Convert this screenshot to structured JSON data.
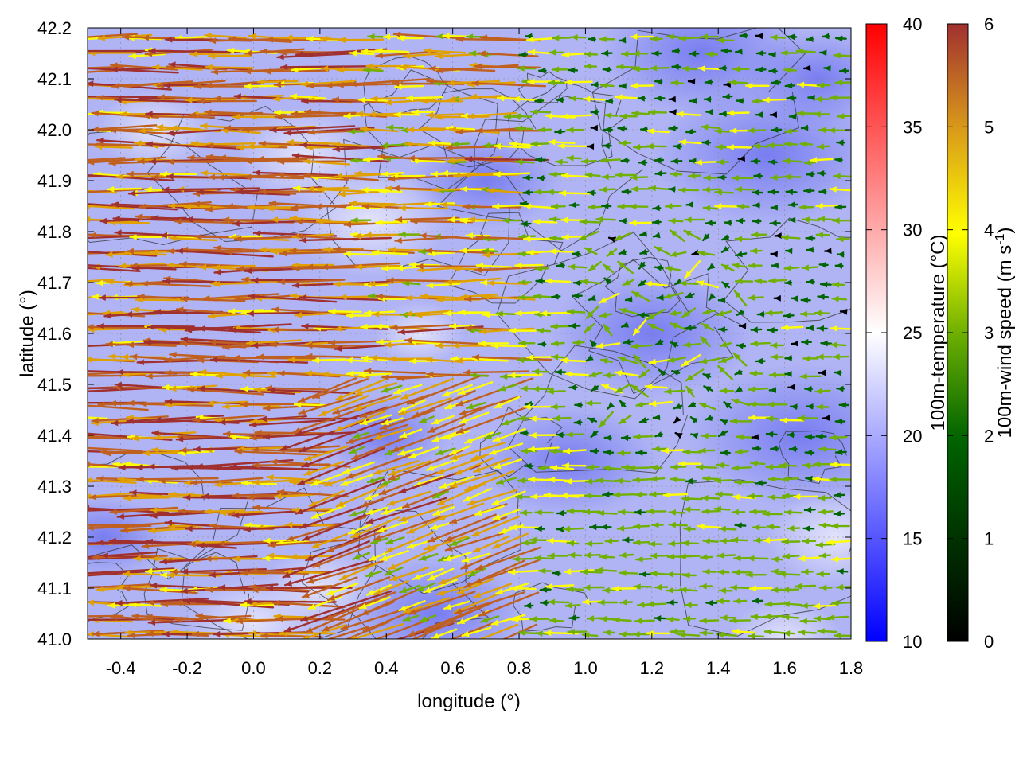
{
  "chart_data": {
    "type": "vector-field",
    "xlabel": "longitude (°)",
    "ylabel": "latitude (°)",
    "xlim": [
      -0.5,
      1.8
    ],
    "ylim": [
      41.0,
      42.2
    ],
    "x_ticks": [
      "-0.4",
      "-0.2",
      "0.0",
      "0.2",
      "0.4",
      "0.6",
      "0.8",
      "1.0",
      "1.2",
      "1.4",
      "1.6",
      "1.8"
    ],
    "y_ticks": [
      "41.0",
      "41.1",
      "41.2",
      "41.3",
      "41.4",
      "41.5",
      "41.6",
      "41.7",
      "41.8",
      "41.9",
      "42.0",
      "42.1",
      "42.2"
    ],
    "grid": true,
    "background_field": {
      "name": "100m-temperature",
      "typical_range": [
        17,
        22
      ]
    },
    "vectors": {
      "name": "100m-wind",
      "direction": "mostly from east to west",
      "speed_range": [
        0,
        6
      ],
      "strong_region": "western half, lon < 0.8",
      "weak_region": "eastern half, lon > 0.9"
    },
    "colorbars": [
      {
        "label": "100m-temperature (°C)",
        "range": [
          10,
          40
        ],
        "ticks": [
          "10",
          "15",
          "20",
          "25",
          "30",
          "35",
          "40"
        ],
        "colors": [
          "#0000ff",
          "#ffffff",
          "#ff0000"
        ]
      },
      {
        "label_main": "100m-wind speed (m s",
        "label_sup": "-1",
        "label_end": ")",
        "range": [
          0,
          6
        ],
        "ticks": [
          "0",
          "1",
          "2",
          "3",
          "4",
          "5",
          "6"
        ],
        "colors": [
          "#000000",
          "#006400",
          "#6fb000",
          "#ffff00",
          "#e0a000",
          "#c06020",
          "#a03030"
        ]
      }
    ]
  }
}
